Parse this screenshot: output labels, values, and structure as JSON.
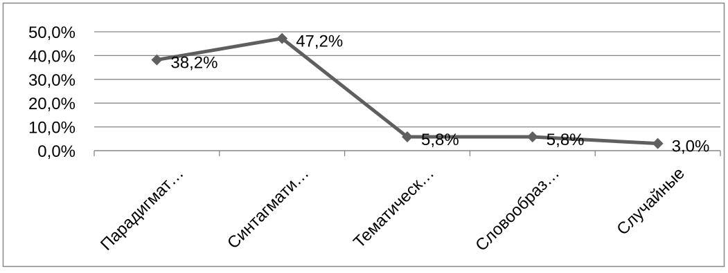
{
  "chart_data": {
    "type": "line",
    "title": "",
    "xlabel": "",
    "ylabel": "",
    "categories": [
      "Парадигмат…",
      "Синтагмати…",
      "Тематическ…",
      "Словообраз…",
      "Случайные"
    ],
    "series": [
      {
        "values": [
          38.2,
          47.2,
          5.8,
          5.8,
          3.0
        ],
        "data_labels": [
          "38,2%",
          "47,2%",
          "5,8%",
          "5,8%",
          "3,0%"
        ]
      }
    ],
    "ylim": [
      0,
      50
    ],
    "y_ticks": [
      0,
      10,
      20,
      30,
      40,
      50
    ],
    "y_tick_labels": [
      "0,0%",
      "10,0%",
      "20,0%",
      "30,0%",
      "40,0%",
      "50,0%"
    ],
    "grid": true,
    "legend": "none",
    "marker": "diamond",
    "colors": {
      "line": "#5f5f5f",
      "grid": "#868686",
      "axis": "#868686",
      "border": "#868686",
      "text": "#000000"
    }
  }
}
